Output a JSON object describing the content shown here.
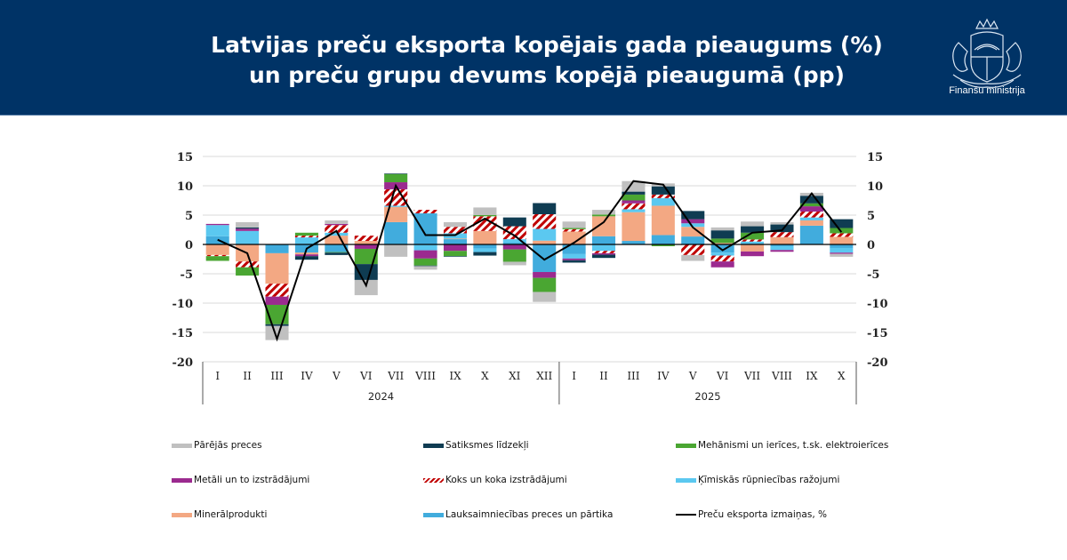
{
  "header": {
    "title_line1": "Latvijas preču eksporta kopējais gada pieaugums (%)",
    "title_line2": "un preču grupu devums kopējā pieaugumā (pp)",
    "logo_text": "Finanšu ministrija",
    "background": "#003366"
  },
  "chart_data": {
    "type": "bar",
    "stacked": true,
    "title": "Latvijas preču eksporta kopējais gada pieaugums (%) un preču grupu devums kopējā pieaugumā (pp)",
    "xlabel": "",
    "ylabel": "",
    "ylim": [
      -20,
      15
    ],
    "yticks": [
      15,
      10,
      5,
      0,
      -5,
      -10,
      -15,
      -20
    ],
    "grid": true,
    "legend_position": "bottom",
    "categories": [
      "I",
      "II",
      "III",
      "IV",
      "V",
      "VI",
      "VII",
      "VIII",
      "IX",
      "X",
      "XI",
      "XII",
      "I",
      "II",
      "III",
      "IV",
      "V",
      "VI",
      "VII",
      "VIII",
      "IX",
      "X"
    ],
    "year_groups": [
      {
        "label": "2024",
        "count": 12
      },
      {
        "label": "2025",
        "count": 10
      }
    ],
    "series": [
      {
        "name": "Lauksaimniecības preces un pārtika",
        "color": "#41acdd",
        "pattern": "solid",
        "values": [
          1.4,
          0,
          -1.5,
          -1.4,
          -1.3,
          0,
          3.8,
          5.3,
          0.9,
          -0.7,
          0.3,
          -4.7,
          -1.65,
          1.4,
          0.6,
          1.6,
          1.35,
          -1.4,
          0,
          -0.3,
          3.2,
          -0.6
        ]
      },
      {
        "name": "Minerālprodukti",
        "color": "#f3a883",
        "pattern": "solid",
        "values": [
          -1.8,
          -2.9,
          -5.2,
          -0.3,
          1.5,
          0.6,
          2.6,
          0,
          0.1,
          2.3,
          0,
          0.65,
          2.2,
          3.4,
          4.9,
          5.0,
          1.65,
          0.25,
          -1.2,
          1.25,
          0.9,
          1.3
        ]
      },
      {
        "name": "Ķīmiskās rūpniecības ražojumi",
        "color": "#5bc8f0",
        "pattern": "solid",
        "values": [
          1.9,
          2.3,
          0,
          1.2,
          0.5,
          0,
          0.2,
          -1.0,
          0.9,
          -0.6,
          0.6,
          2.0,
          -0.75,
          -1.1,
          0.5,
          1.3,
          0.6,
          -0.5,
          0.5,
          -0.65,
          0.5,
          -0.8
        ]
      },
      {
        "name": "Koks un koka izstrādājumi",
        "color": "#c00000",
        "pattern": "hatch",
        "values": [
          -0.2,
          -1.0,
          -2.2,
          0.3,
          1.3,
          0.9,
          2.8,
          0.6,
          1.1,
          2.5,
          2.2,
          2.5,
          0.4,
          -0.4,
          1.0,
          0.6,
          -1.8,
          -1.0,
          0.35,
          0.85,
          1.0,
          0.6
        ]
      },
      {
        "name": "Metāli un to izstrādājumi",
        "color": "#9b2a8f",
        "pattern": "solid",
        "values": [
          0.2,
          0.4,
          -1.4,
          -0.3,
          0.2,
          -0.75,
          1.2,
          -1.4,
          -1.1,
          0,
          -0.85,
          -1.0,
          -0.3,
          -0.25,
          0.5,
          0,
          0.7,
          -1.0,
          -0.8,
          -0.3,
          0.9,
          -0.2
        ]
      },
      {
        "name": "Mehānismi un ierīces, t.sk. elektroierīces",
        "color": "#4aa632",
        "pattern": "solid",
        "values": [
          -0.8,
          -1.4,
          -3.3,
          0.5,
          -0.1,
          -2.6,
          1.4,
          -1.2,
          -0.9,
          0.2,
          -2.1,
          -2.4,
          0.2,
          0.3,
          1.0,
          -0.3,
          0,
          0.75,
          1.15,
          0,
          0.5,
          0.9
        ]
      },
      {
        "name": "Satiksmes līdzekļi",
        "color": "#0f3c52",
        "pattern": "solid",
        "values": [
          0,
          0.2,
          -0.3,
          -0.6,
          -0.4,
          -2.7,
          0.1,
          -0.1,
          -0.1,
          -0.6,
          1.5,
          1.9,
          -0.4,
          -0.55,
          0.5,
          1.4,
          1.4,
          1.4,
          1.1,
          1.3,
          1.3,
          1.5
        ]
      },
      {
        "name": "Pārējās preces",
        "color": "#c0c0c0",
        "pattern": "solid",
        "values": [
          0,
          0.9,
          -2.4,
          0,
          0.6,
          -2.6,
          -2.1,
          -0.6,
          0.8,
          1.3,
          -0.6,
          -1.7,
          1.1,
          0.8,
          1.8,
          0.5,
          -1.0,
          0.5,
          0.8,
          0.4,
          0.5,
          -0.5
        ]
      }
    ],
    "line_series": {
      "name": "Preču eksporta izmaiņas, %",
      "color": "#000000",
      "values": [
        0.8,
        -1.5,
        -16.1,
        -0.7,
        2.3,
        -7.0,
        10.0,
        1.6,
        1.6,
        4.4,
        1.5,
        -2.6,
        0.3,
        3.8,
        10.8,
        10.2,
        2.9,
        -1.0,
        2.0,
        2.4,
        8.7,
        2.1
      ]
    }
  },
  "legend": {
    "items": [
      {
        "label": "Pārējās preces",
        "color": "#c0c0c0",
        "type": "solid"
      },
      {
        "label": "Satiksmes līdzekļi",
        "color": "#0f3c52",
        "type": "solid"
      },
      {
        "label": "Mehānismi un ierīces, t.sk. elektroierīces",
        "color": "#4aa632",
        "type": "solid"
      },
      {
        "label": "Metāli un to izstrādājumi",
        "color": "#9b2a8f",
        "type": "solid"
      },
      {
        "label": "Koks un koka izstrādājumi",
        "color": "#c00000",
        "type": "hatch"
      },
      {
        "label": "Ķīmiskās rūpniecības ražojumi",
        "color": "#5bc8f0",
        "type": "solid"
      },
      {
        "label": "Minerālprodukti",
        "color": "#f3a883",
        "type": "solid"
      },
      {
        "label": "Lauksaimniecības preces un pārtika",
        "color": "#41acdd",
        "type": "solid"
      },
      {
        "label": "Preču eksporta izmaiņas, %",
        "color": "#000000",
        "type": "line"
      }
    ]
  }
}
